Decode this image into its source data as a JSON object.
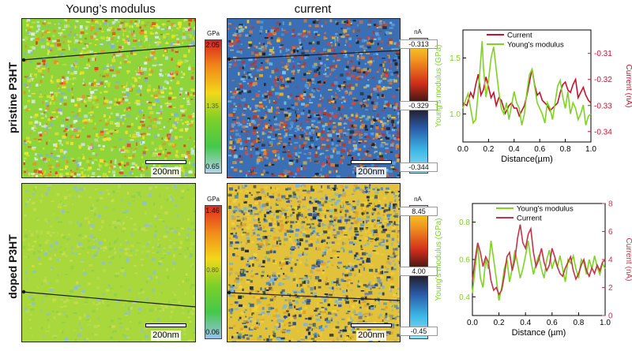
{
  "columns": {
    "modulus_title": "Young’s modulus",
    "current_title": "current"
  },
  "rows": [
    {
      "label": "pristine P3HT",
      "modulus_map": {
        "scale_bar": "200nm",
        "colorbar": {
          "unit": "GPa",
          "max": "2.05",
          "mid": "1.35",
          "min": "0.65",
          "colors": [
            "#d82020",
            "#f28a18",
            "#f2d81a",
            "#7cd028",
            "#45c84a",
            "#b5d2ec"
          ]
        },
        "texture": {
          "base": "#8fd43a",
          "dots": [
            "#f6e32a",
            "#f6e32a",
            "#c4e23a",
            "#dff0f8",
            "#cfe4f6",
            "#e84020",
            "#f08a22",
            "#7fb0de"
          ]
        }
      },
      "current_map": {
        "scale_bar": "200nm",
        "colorbar": {
          "unit": "nA",
          "max": "-0.313",
          "mid": "-0.329",
          "min": "-0.344",
          "colors": [
            "#f6e62a",
            "#f09020",
            "#d02e1a",
            "#221212",
            "#2a5aa8",
            "#3cb8e8",
            "#9be0f0"
          ]
        },
        "texture": {
          "base": "#3a6fb5",
          "dots": [
            "#e0452a",
            "#f07a22",
            "#f6c22e",
            "#5ba0d8",
            "#202020",
            "#7ec2e8",
            "#c33220"
          ]
        }
      }
    },
    {
      "label": "doped P3HT",
      "modulus_map": {
        "scale_bar": "200nm",
        "colorbar": {
          "unit": "GPa",
          "max": "1.46",
          "mid": "0.80",
          "min": "0.06",
          "colors": [
            "#e02a1e",
            "#f08a1a",
            "#f2d81a",
            "#7cd028",
            "#45c84a",
            "#9bc2e6"
          ]
        },
        "texture": {
          "base": "#a8d83c",
          "dots": [
            "#8fcf4a",
            "#b9dc55",
            "#8fbde0",
            "#c8df4a"
          ]
        }
      },
      "current_map": {
        "scale_bar": "200nm",
        "colorbar": {
          "unit": "nA",
          "max": "8.45",
          "mid": "4.00",
          "min": "-0.45",
          "colors": [
            "#f6e62a",
            "#f09020",
            "#d02e1a",
            "#221212",
            "#2a5aa8",
            "#3cb8e8",
            "#9be0f0"
          ]
        },
        "texture": {
          "base": "#e2c23a",
          "dots": [
            "#4a86c8",
            "#2a4f90",
            "#f2d23a",
            "#7ab4e0",
            "#d8a030",
            "#1a2a40"
          ]
        }
      }
    }
  ],
  "chart_data": [
    {
      "type": "line",
      "xlabel": "Distance(µm)",
      "ylabel_left": "Young's modulus (GPa)",
      "ylabel_right": "Current (nA)",
      "xlim": [
        0,
        1.0
      ],
      "ylim_left": [
        0.75,
        1.75
      ],
      "ylim_right": [
        -0.344,
        -0.301
      ],
      "x_ticks": [
        "0.0",
        "0.2",
        "0.4",
        "0.6",
        "0.8",
        "1.0"
      ],
      "y_left_ticks": [
        1.0,
        1.5
      ],
      "y_left_tick_labels": [
        "1.0",
        "1.5"
      ],
      "y_right_ticks": [
        -0.34,
        -0.33,
        -0.32,
        -0.31
      ],
      "y_right_tick_labels": [
        "-0.34",
        "-0.33",
        "-0.32",
        "-0.31"
      ],
      "legend_position": "top",
      "series": [
        {
          "name": "Current",
          "axis": "right",
          "color": "#c8102e",
          "x": [
            0,
            0.03,
            0.06,
            0.08,
            0.1,
            0.12,
            0.14,
            0.16,
            0.18,
            0.2,
            0.22,
            0.24,
            0.26,
            0.28,
            0.3,
            0.33,
            0.36,
            0.38,
            0.4,
            0.42,
            0.44,
            0.46,
            0.48,
            0.5,
            0.52,
            0.54,
            0.56,
            0.58,
            0.6,
            0.62,
            0.64,
            0.66,
            0.68,
            0.7,
            0.72,
            0.74,
            0.76,
            0.78,
            0.8,
            0.82,
            0.84,
            0.86,
            0.88,
            0.9,
            0.92,
            0.94,
            0.96,
            0.98,
            1.0
          ],
          "y": [
            -0.329,
            -0.33,
            -0.325,
            -0.327,
            -0.322,
            -0.318,
            -0.326,
            -0.324,
            -0.319,
            -0.323,
            -0.327,
            -0.325,
            -0.33,
            -0.327,
            -0.328,
            -0.333,
            -0.33,
            -0.329,
            -0.331,
            -0.331,
            -0.334,
            -0.332,
            -0.33,
            -0.326,
            -0.321,
            -0.316,
            -0.322,
            -0.326,
            -0.325,
            -0.328,
            -0.329,
            -0.33,
            -0.332,
            -0.331,
            -0.33,
            -0.329,
            -0.325,
            -0.322,
            -0.321,
            -0.324,
            -0.325,
            -0.322,
            -0.32,
            -0.327,
            -0.325,
            -0.323,
            -0.326,
            -0.328,
            -0.329
          ]
        },
        {
          "name": "Young's modulus",
          "axis": "left",
          "color": "#7ed321",
          "x": [
            0,
            0.02,
            0.04,
            0.06,
            0.08,
            0.1,
            0.12,
            0.14,
            0.15,
            0.16,
            0.18,
            0.2,
            0.22,
            0.24,
            0.26,
            0.28,
            0.3,
            0.32,
            0.34,
            0.36,
            0.38,
            0.4,
            0.42,
            0.44,
            0.46,
            0.48,
            0.5,
            0.52,
            0.54,
            0.56,
            0.58,
            0.6,
            0.62,
            0.64,
            0.66,
            0.68,
            0.7,
            0.72,
            0.74,
            0.76,
            0.78,
            0.8,
            0.82,
            0.84,
            0.86,
            0.88,
            0.9,
            0.92,
            0.94,
            0.96,
            0.98,
            1.0
          ],
          "y": [
            1.05,
            1.12,
            1.18,
            1.05,
            0.92,
            0.95,
            1.2,
            1.5,
            1.65,
            1.42,
            1.15,
            1.3,
            1.5,
            1.6,
            1.4,
            1.2,
            1.05,
            1.0,
            1.1,
            0.95,
            1.08,
            1.2,
            1.1,
            1.05,
            0.9,
            1.0,
            1.2,
            1.35,
            1.4,
            1.25,
            1.1,
            1.05,
            1.0,
            0.92,
            1.1,
            1.05,
            0.95,
            1.1,
            1.25,
            1.3,
            1.15,
            1.05,
            1.2,
            1.0,
            1.1,
            1.05,
            0.95,
            1.0,
            1.08,
            0.9,
            0.98,
            1.0
          ]
        }
      ]
    },
    {
      "type": "line",
      "xlabel": "Distance (µm)",
      "ylabel_left": "Young's modulus (GPa)",
      "ylabel_right": "Current (nA)",
      "xlim": [
        0,
        1.0
      ],
      "ylim_left": [
        0.3,
        0.9
      ],
      "ylim_right": [
        0,
        8
      ],
      "x_ticks": [
        "0.0",
        "0.2",
        "0.4",
        "0.6",
        "0.8",
        "1.0"
      ],
      "y_left_ticks": [
        0.4,
        0.6,
        0.8
      ],
      "y_left_tick_labels": [
        "0.4",
        "0.6",
        "0.8"
      ],
      "y_right_ticks": [
        0,
        2,
        4,
        6,
        8
      ],
      "y_right_tick_labels": [
        "0",
        "2",
        "4",
        "6",
        "8"
      ],
      "legend_position": "top",
      "series": [
        {
          "name": "Young's modulus",
          "axis": "left",
          "color": "#7ed321",
          "x": [
            0,
            0.02,
            0.04,
            0.06,
            0.08,
            0.1,
            0.12,
            0.14,
            0.16,
            0.18,
            0.2,
            0.22,
            0.24,
            0.26,
            0.28,
            0.3,
            0.32,
            0.34,
            0.36,
            0.38,
            0.4,
            0.42,
            0.44,
            0.46,
            0.48,
            0.5,
            0.52,
            0.54,
            0.56,
            0.58,
            0.6,
            0.62,
            0.64,
            0.66,
            0.68,
            0.7,
            0.72,
            0.74,
            0.76,
            0.78,
            0.8,
            0.82,
            0.84,
            0.86,
            0.88,
            0.9,
            0.92,
            0.94,
            0.96,
            0.98,
            1.0
          ],
          "y": [
            0.42,
            0.55,
            0.68,
            0.5,
            0.45,
            0.6,
            0.55,
            0.7,
            0.6,
            0.5,
            0.38,
            0.45,
            0.55,
            0.6,
            0.48,
            0.55,
            0.65,
            0.58,
            0.5,
            0.55,
            0.62,
            0.7,
            0.6,
            0.52,
            0.58,
            0.62,
            0.55,
            0.5,
            0.6,
            0.65,
            0.55,
            0.6,
            0.56,
            0.62,
            0.55,
            0.48,
            0.6,
            0.58,
            0.62,
            0.55,
            0.5,
            0.6,
            0.58,
            0.52,
            0.6,
            0.55,
            0.62,
            0.56,
            0.52,
            0.58,
            0.55
          ]
        },
        {
          "name": "Current",
          "axis": "right",
          "color": "#c2344a",
          "x": [
            0,
            0.02,
            0.04,
            0.06,
            0.08,
            0.1,
            0.12,
            0.14,
            0.16,
            0.18,
            0.2,
            0.22,
            0.24,
            0.26,
            0.28,
            0.3,
            0.32,
            0.34,
            0.36,
            0.38,
            0.4,
            0.42,
            0.44,
            0.46,
            0.48,
            0.5,
            0.52,
            0.54,
            0.56,
            0.58,
            0.6,
            0.62,
            0.64,
            0.66,
            0.68,
            0.7,
            0.72,
            0.74,
            0.76,
            0.78,
            0.8,
            0.82,
            0.84,
            0.86,
            0.88,
            0.9,
            0.92,
            0.94,
            0.96,
            0.98,
            1.0
          ],
          "y": [
            2.5,
            4.0,
            5.2,
            4.5,
            3.5,
            4.2,
            3.8,
            2.5,
            1.8,
            2.0,
            1.5,
            1.8,
            2.8,
            4.2,
            4.5,
            3.2,
            4.0,
            5.5,
            6.5,
            5.2,
            4.8,
            5.8,
            6.2,
            4.5,
            3.5,
            4.0,
            4.8,
            3.8,
            3.2,
            3.6,
            4.8,
            4.2,
            3.5,
            3.0,
            2.8,
            3.4,
            3.8,
            4.2,
            3.2,
            2.6,
            3.0,
            3.6,
            4.0,
            3.2,
            2.8,
            3.4,
            3.0,
            3.6,
            3.2,
            3.8,
            4.0
          ]
        }
      ]
    }
  ]
}
